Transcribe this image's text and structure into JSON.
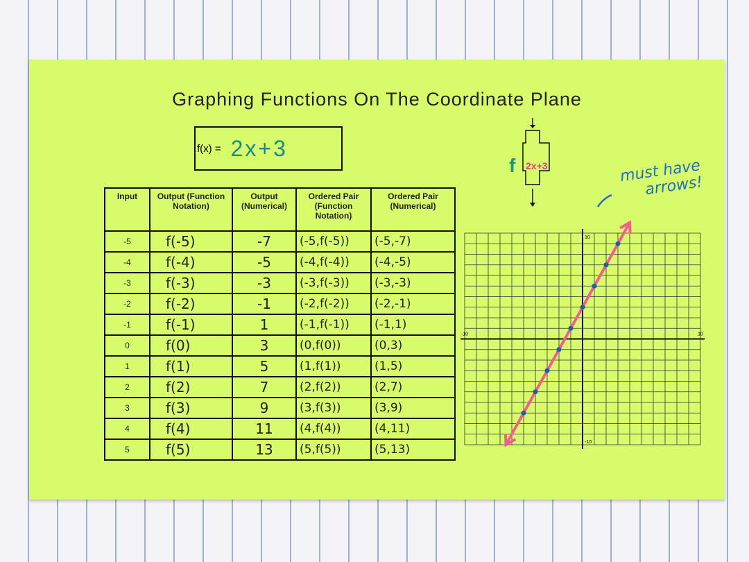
{
  "title": "Graphing Functions On The Coordinate Plane",
  "function_box": {
    "label": "f(x) =",
    "expression": "2x+3"
  },
  "table": {
    "headers": [
      "Input",
      "Output (Function Notation)",
      "Output (Numerical)",
      "Ordered Pair (Function Notation)",
      "Ordered Pair (Numerical)"
    ],
    "rows": [
      [
        "-5",
        "f(-5)",
        "-7",
        "(-5,f(-5))",
        "(-5,-7)"
      ],
      [
        "-4",
        "f(-4)",
        "-5",
        "(-4,f(-4))",
        "(-4,-5)"
      ],
      [
        "-3",
        "f(-3)",
        "-3",
        "(-3,f(-3))",
        "(-3,-3)"
      ],
      [
        "-2",
        "f(-2)",
        "-1",
        "(-2,f(-2))",
        "(-2,-1)"
      ],
      [
        "-1",
        "f(-1)",
        "1",
        "(-1,f(-1))",
        "(-1,1)"
      ],
      [
        "0",
        "f(0)",
        "3",
        "(0,f(0))",
        "(0,3)"
      ],
      [
        "1",
        "f(1)",
        "5",
        "(1,f(1))",
        "(1,5)"
      ],
      [
        "2",
        "f(2)",
        "7",
        "(2,f(2))",
        "(2,7)"
      ],
      [
        "3",
        "f(3)",
        "9",
        "(3,f(3))",
        "(3,9)"
      ],
      [
        "4",
        "f(4)",
        "11",
        "(4,f(4))",
        "(4,11)"
      ],
      [
        "5",
        "f(5)",
        "13",
        "(5,f(5))",
        "(5,13)"
      ]
    ]
  },
  "machine": {
    "name": "f",
    "rule": "2x+3"
  },
  "annotation": "must have arrows!",
  "graph": {
    "xlim": [
      -10,
      10
    ],
    "ylim": [
      -10,
      10
    ],
    "xticks": [
      -10,
      10
    ],
    "yticks": [
      -10,
      10
    ],
    "points": {
      "x": [
        -5,
        -4,
        -3,
        -2,
        -1,
        0,
        1,
        2,
        3
      ],
      "y": [
        -7,
        -5,
        -3,
        -1,
        1,
        3,
        5,
        7,
        9
      ]
    }
  }
}
